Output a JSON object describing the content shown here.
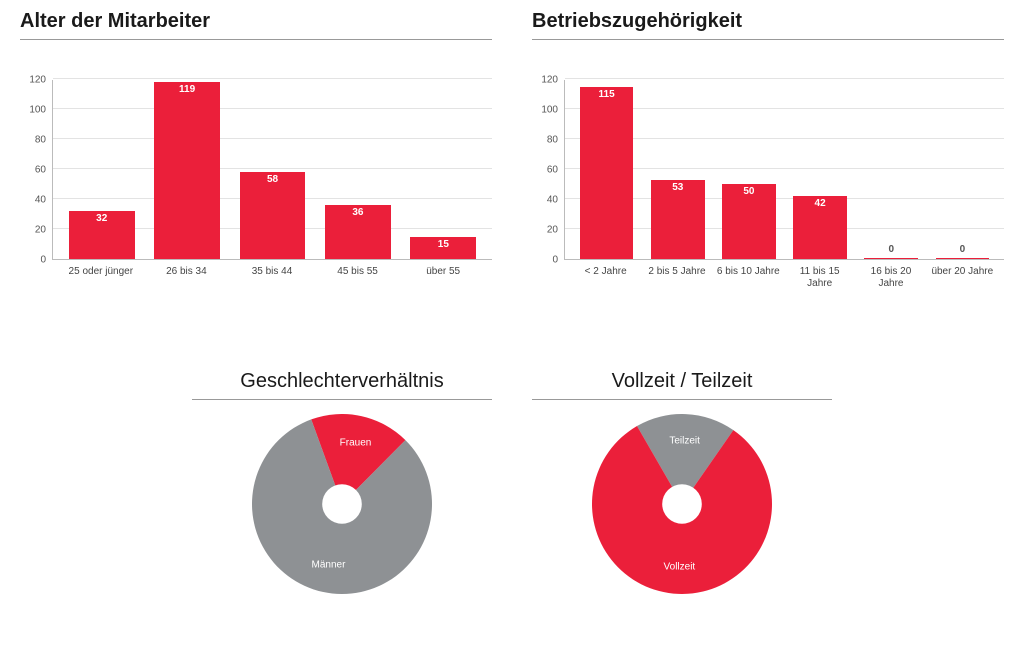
{
  "colors": {
    "primary": "#eb1f3a",
    "secondary": "#8e9194",
    "grid": "#e3e3e3",
    "axis": "#bbbbbb",
    "text": "#1a1a1a",
    "tick": "#555555",
    "background": "#ffffff"
  },
  "typography": {
    "title_fontsize": 20,
    "tick_fontsize": 10,
    "slice_label_fontsize": 10
  },
  "bar_charts": [
    {
      "id": "age",
      "title": "Alter der Mitarbeiter",
      "ylim": [
        0,
        120
      ],
      "ytick_step": 20,
      "bar_color": "#eb1f3a",
      "bar_width": 0.85,
      "categories": [
        "25 oder jünger",
        "26 bis 34",
        "35 bis 44",
        "45 bis 55",
        "über 55"
      ],
      "values": [
        32,
        119,
        58,
        36,
        15
      ]
    },
    {
      "id": "tenure",
      "title": "Betriebszugehörigkeit",
      "ylim": [
        0,
        120
      ],
      "ytick_step": 20,
      "bar_color": "#eb1f3a",
      "bar_width": 0.85,
      "categories": [
        "< 2 Jahre",
        "2 bis 5 Jahre",
        "6 bis 10 Jahre",
        "11 bis 15 Jahre",
        "16 bis 20 Jahre",
        "über 20 Jahre"
      ],
      "values": [
        115,
        53,
        50,
        42,
        0,
        0
      ]
    }
  ],
  "donut_charts": [
    {
      "id": "gender",
      "title": "Geschlechterverhältnis",
      "inner_radius_pct": 22,
      "start_angle_deg": -20,
      "slices": [
        {
          "label": "Frauen",
          "value": 18,
          "color": "#eb1f3a"
        },
        {
          "label": "Männer",
          "value": 82,
          "color": "#8e9194"
        }
      ]
    },
    {
      "id": "fulltime",
      "title": "Vollzeit / Teilzeit",
      "inner_radius_pct": 22,
      "start_angle_deg": -30,
      "slices": [
        {
          "label": "Teilzeit",
          "value": 18,
          "color": "#8e9194"
        },
        {
          "label": "Vollzeit",
          "value": 82,
          "color": "#eb1f3a"
        }
      ]
    }
  ]
}
